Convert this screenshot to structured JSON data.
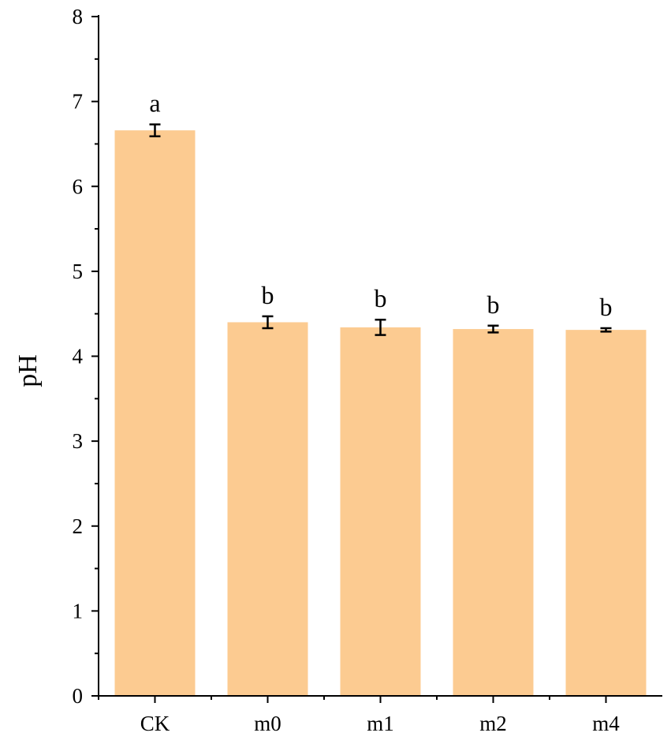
{
  "chart_data": {
    "type": "bar",
    "title": "",
    "xlabel": "",
    "ylabel": "pH",
    "ylim": [
      0,
      8
    ],
    "yticks": [
      0,
      1,
      2,
      3,
      4,
      5,
      6,
      7,
      8
    ],
    "categories": [
      "CK",
      "m0",
      "m1",
      "m2",
      "m4"
    ],
    "values": [
      6.66,
      4.4,
      4.34,
      4.32,
      4.31
    ],
    "errors": [
      0.07,
      0.07,
      0.09,
      0.04,
      0.02
    ],
    "significance_labels": [
      "a",
      "b",
      "b",
      "b",
      "b"
    ],
    "bar_color": "#FCCB91",
    "grid": false,
    "legend": "none"
  }
}
